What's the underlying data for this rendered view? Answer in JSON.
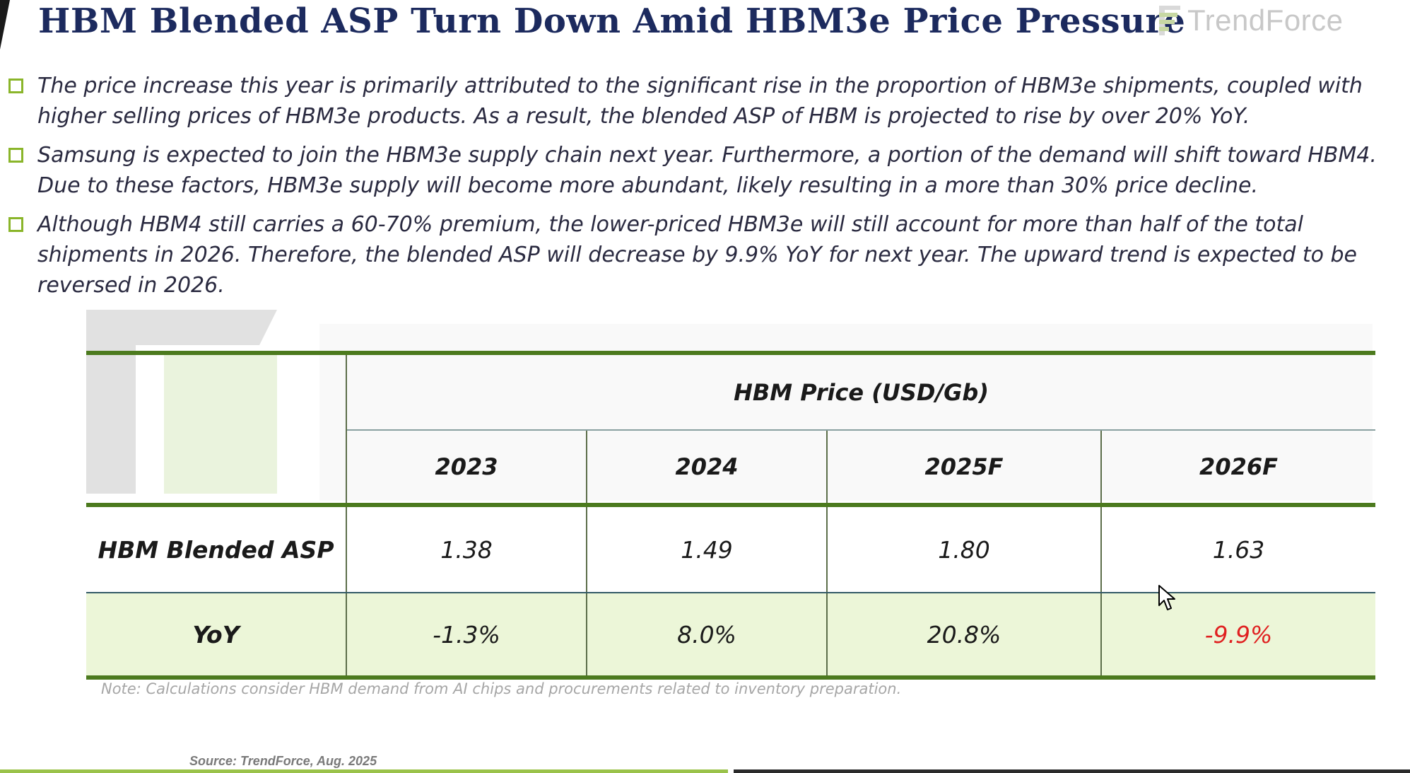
{
  "slide": {
    "title": "HBM Blended ASP Turn Down Amid HBM3e Price Pressure",
    "logo_text": "TrendForce",
    "bullets": [
      "The price increase this year is primarily attributed to the significant rise in the proportion of HBM3e shipments, coupled with higher selling prices of HBM3e products. As a result, the blended ASP of HBM is projected to rise by over 20% YoY.",
      "Samsung is expected to join the HBM3e supply chain next year. Furthermore, a portion of the demand will shift toward HBM4. Due to these factors, HBM3e supply will become more abundant, likely resulting in a more than 30% price decline.",
      "Although HBM4 still carries a 60-70% premium, the lower-priced HBM3e will still account for more than half of the total shipments in 2026. Therefore, the blended ASP will decrease by 9.9% YoY for next year. The upward trend is expected to be reversed in 2026."
    ],
    "note": "Note: Calculations consider HBM demand from AI chips and procurements related to inventory preparation.",
    "source": "Source: TrendForce, Aug. 2025"
  },
  "table": {
    "group_header": "HBM Price (USD/Gb)",
    "years": [
      "2023",
      "2024",
      "2025F",
      "2026F"
    ],
    "rows": [
      {
        "label": "HBM Blended ASP",
        "values": [
          "1.38",
          "1.49",
          "1.80",
          "1.63"
        ]
      },
      {
        "label": "YoY",
        "values": [
          "-1.3%",
          "8.0%",
          "20.8%",
          "-9.9%"
        ]
      }
    ]
  },
  "colors": {
    "title": "#1c2a5e",
    "accent_green": "#8ab52a",
    "table_rule": "#4c7a1e",
    "yoy_fill": "#ecf6d8",
    "negative": "#e02020"
  },
  "icons": [
    "square-bullet-icon",
    "trendforce-logo-icon",
    "mouse-cursor-icon"
  ]
}
